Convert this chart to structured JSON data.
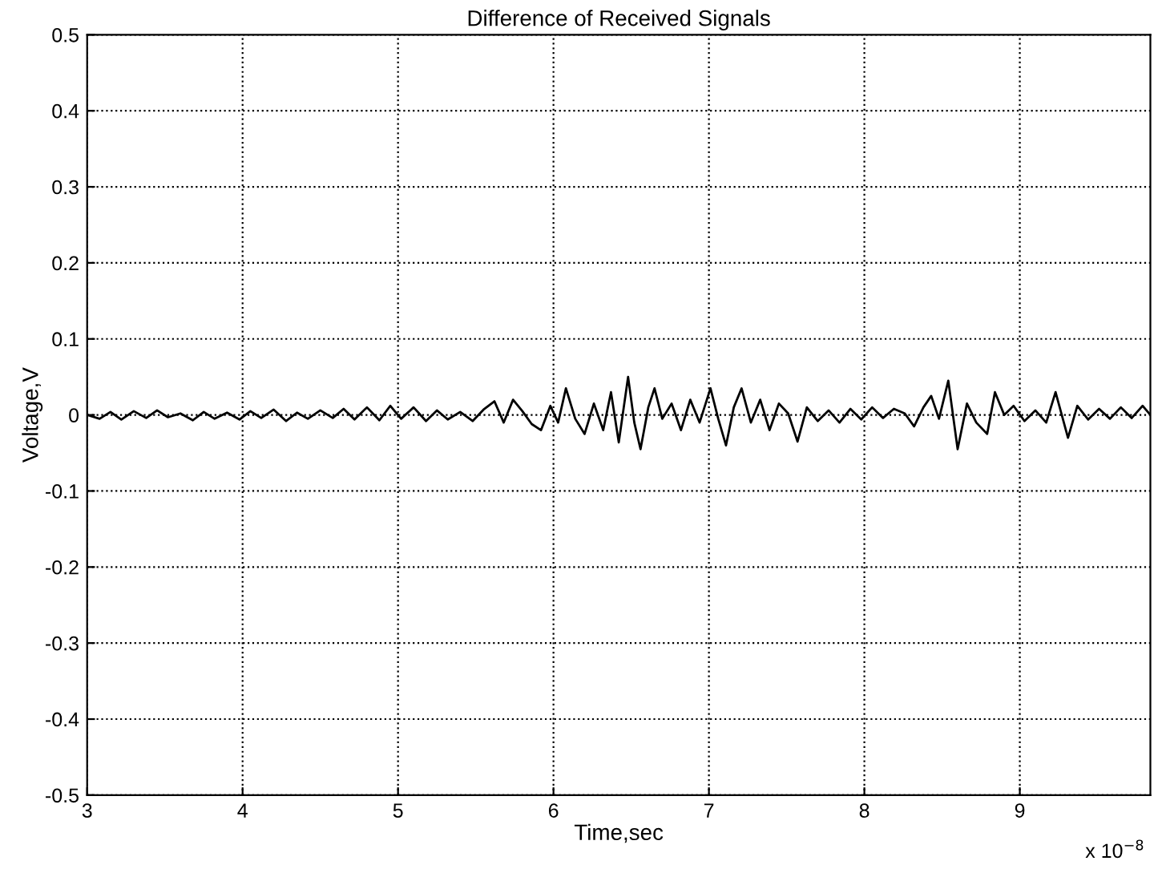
{
  "chart_data": {
    "type": "line",
    "title": "Difference of Received Signals",
    "xlabel": "Time,sec",
    "ylabel": "Voltage,V",
    "annotations": [
      "x 10$^{−8}$"
    ],
    "x": [
      3.0,
      3.08,
      3.15,
      3.22,
      3.3,
      3.38,
      3.45,
      3.52,
      3.6,
      3.68,
      3.75,
      3.82,
      3.9,
      3.98,
      4.05,
      4.12,
      4.2,
      4.28,
      4.35,
      4.42,
      4.5,
      4.58,
      4.65,
      4.72,
      4.8,
      4.88,
      4.95,
      5.02,
      5.1,
      5.18,
      5.25,
      5.32,
      5.4,
      5.48,
      5.55,
      5.62,
      5.68,
      5.74,
      5.8,
      5.86,
      5.92,
      5.98,
      6.03,
      6.08,
      6.14,
      6.2,
      6.26,
      6.32,
      6.37,
      6.42,
      6.48,
      6.52,
      6.56,
      6.61,
      6.65,
      6.7,
      6.76,
      6.82,
      6.88,
      6.94,
      7.01,
      7.06,
      7.11,
      7.16,
      7.21,
      7.27,
      7.33,
      7.39,
      7.45,
      7.51,
      7.57,
      7.63,
      7.7,
      7.77,
      7.84,
      7.91,
      7.98,
      8.05,
      8.12,
      8.19,
      8.26,
      8.32,
      8.38,
      8.43,
      8.48,
      8.54,
      8.6,
      8.66,
      8.72,
      8.79,
      8.84,
      8.9,
      8.96,
      9.03,
      9.1,
      9.17,
      9.23,
      9.31,
      9.37,
      9.44,
      9.51,
      9.58,
      9.65,
      9.72,
      9.79,
      9.84
    ],
    "values": [
      0.0,
      -0.005,
      0.004,
      -0.006,
      0.005,
      -0.004,
      0.006,
      -0.003,
      0.002,
      -0.007,
      0.004,
      -0.005,
      0.003,
      -0.006,
      0.005,
      -0.004,
      0.007,
      -0.008,
      0.003,
      -0.005,
      0.006,
      -0.004,
      0.008,
      -0.006,
      0.01,
      -0.007,
      0.012,
      -0.005,
      0.01,
      -0.008,
      0.006,
      -0.006,
      0.004,
      -0.008,
      0.007,
      0.018,
      -0.01,
      0.02,
      0.005,
      -0.012,
      -0.02,
      0.012,
      -0.01,
      0.035,
      -0.005,
      -0.025,
      0.015,
      -0.02,
      0.03,
      -0.036,
      0.05,
      -0.01,
      -0.045,
      0.01,
      0.035,
      -0.005,
      0.015,
      -0.02,
      0.02,
      -0.01,
      0.035,
      -0.005,
      -0.04,
      0.01,
      0.035,
      -0.01,
      0.02,
      -0.02,
      0.015,
      0.002,
      -0.035,
      0.01,
      -0.008,
      0.006,
      -0.01,
      0.008,
      -0.006,
      0.01,
      -0.004,
      0.008,
      0.002,
      -0.015,
      0.01,
      0.025,
      -0.005,
      0.045,
      -0.045,
      0.015,
      -0.01,
      -0.025,
      0.03,
      0.0,
      0.012,
      -0.008,
      0.006,
      -0.01,
      0.03,
      -0.03,
      0.012,
      -0.006,
      0.008,
      -0.005,
      0.01,
      -0.004,
      0.012,
      0.0
    ],
    "color": "#000000",
    "xlim": [
      3,
      9.84
    ],
    "xticks": [
      3,
      4,
      5,
      6,
      7,
      8,
      9
    ],
    "ylim": [
      -0.5,
      0.5
    ],
    "yticks": [
      -0.5,
      -0.4,
      -0.3,
      -0.2,
      -0.1,
      0,
      0.1,
      0.2,
      0.3,
      0.4,
      0.5
    ],
    "grid": true,
    "line_style": "solid"
  }
}
